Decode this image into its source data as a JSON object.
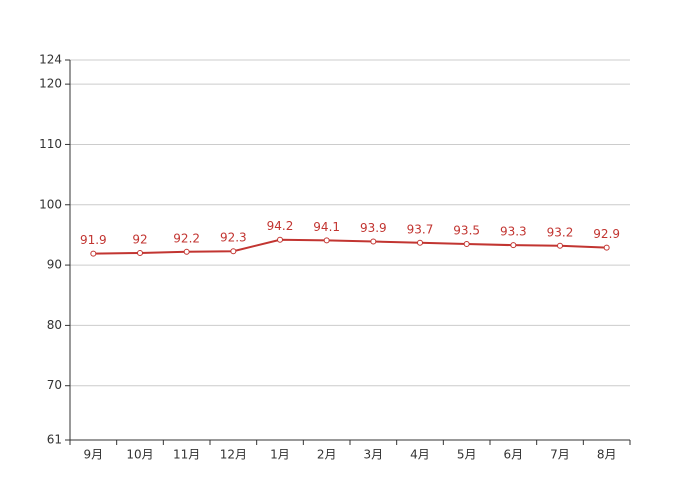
{
  "chart_data": {
    "type": "line",
    "categories": [
      "9月",
      "10月",
      "11月",
      "12月",
      "1月",
      "2月",
      "3月",
      "4月",
      "5月",
      "6月",
      "7月",
      "8月"
    ],
    "values": [
      91.9,
      92,
      92.2,
      92.3,
      94.2,
      94.1,
      93.9,
      93.7,
      93.5,
      93.3,
      93.2,
      92.9
    ],
    "color": "#c23531",
    "ylim": [
      61,
      124
    ],
    "yticks": [
      61,
      70,
      80,
      90,
      100,
      110,
      120,
      124
    ],
    "grid": true
  }
}
